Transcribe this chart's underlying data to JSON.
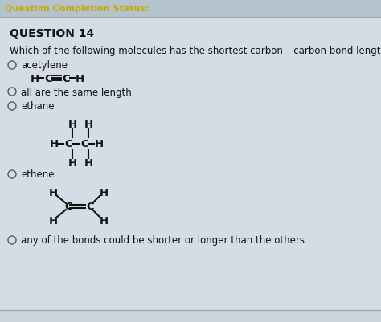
{
  "bg_top_color": "#cdd8e0",
  "bg_content_color": "#cdd8e0",
  "header_text": "Question Completion Status:",
  "header_color": "#c8a800",
  "header_bg": "#b8c8d0",
  "question_label": "QUESTION 14",
  "question_text": "Which of the following molecules has the shortest carbon – carbon bond length?",
  "options": [
    "acetylene",
    "all are the same length",
    "ethane",
    "ethene",
    "any of the bonds could be shorter or longer than the others"
  ],
  "circle_color": "#555555",
  "text_color": "#111111",
  "content_bg": "#d4dde5"
}
